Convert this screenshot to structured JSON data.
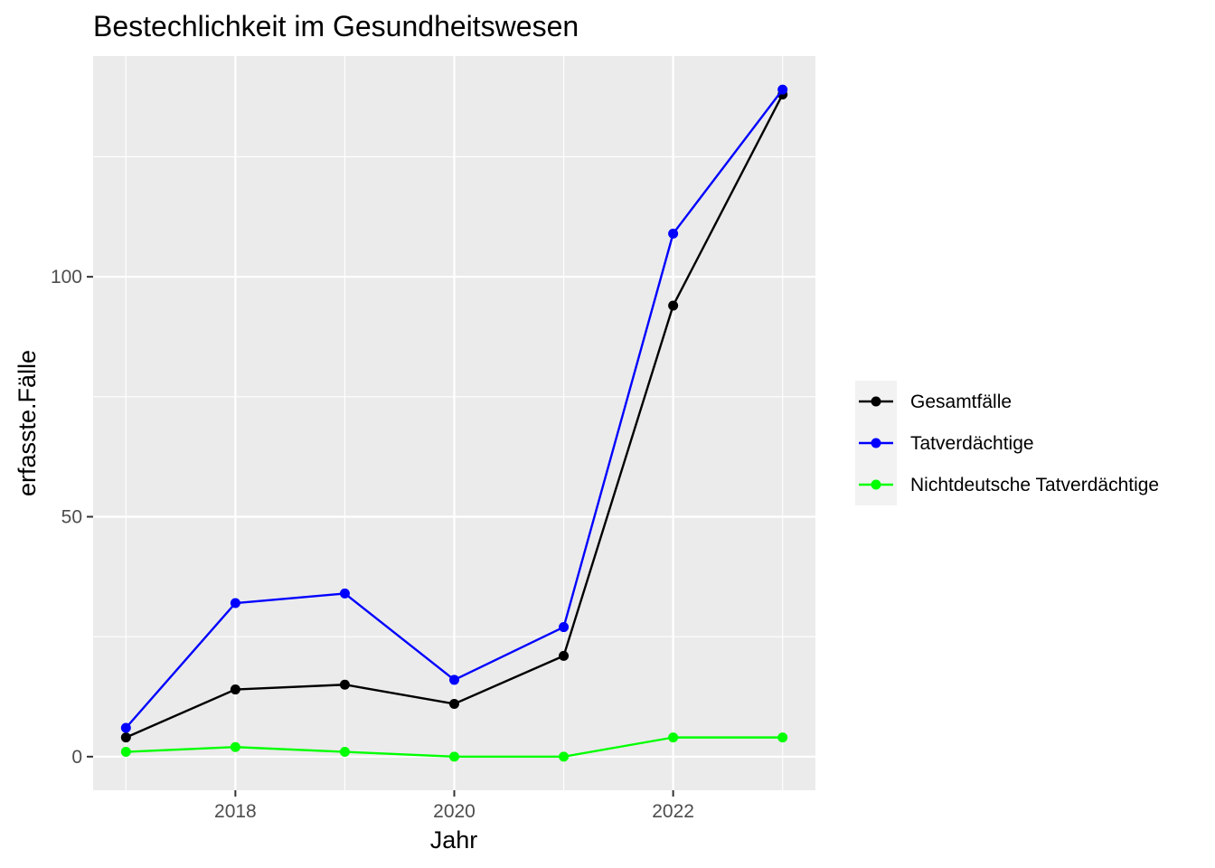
{
  "chart_data": {
    "type": "line",
    "title": "Bestechlichkeit im Gesundheitswesen",
    "xlabel": "Jahr",
    "ylabel": "erfasste.Fälle",
    "x": [
      2017,
      2018,
      2019,
      2020,
      2021,
      2022,
      2023
    ],
    "xlim": [
      2016.7,
      2023.3
    ],
    "ylim": [
      -7,
      146
    ],
    "x_ticks": [
      2018,
      2020,
      2022
    ],
    "y_ticks": [
      0,
      50,
      100
    ],
    "grid": true,
    "legend_position": "right",
    "background_color": "#EBEBEB",
    "grid_color": "#FFFFFF",
    "series": [
      {
        "name": "Gesamtfälle",
        "color": "#000000",
        "values": [
          4,
          14,
          15,
          11,
          21,
          94,
          138
        ]
      },
      {
        "name": "Tatverdächtige",
        "color": "#0000FF",
        "values": [
          6,
          32,
          34,
          16,
          27,
          109,
          139
        ]
      },
      {
        "name": "Nichtdeutsche Tatverdächtige",
        "color": "#00FF00",
        "values": [
          1,
          2,
          1,
          0,
          0,
          4,
          4
        ]
      }
    ]
  }
}
